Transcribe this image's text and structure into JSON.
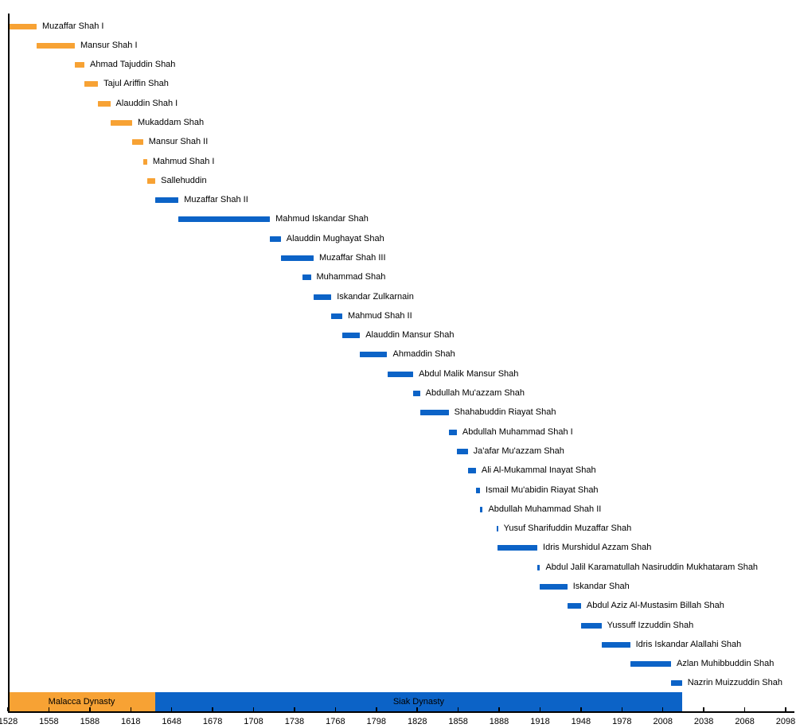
{
  "colors": {
    "malacca_orange": "#F7A234",
    "siak_blue": "#0C63C7",
    "axis_line": "#000000",
    "label_text": "#000000"
  },
  "chart_data": {
    "type": "timeline",
    "title": "",
    "xlabel": "",
    "ylabel": "",
    "grid": false,
    "legend_position": "none",
    "x_axis": {
      "min": 1528,
      "max": 2098,
      "tick_step": 30,
      "ticks": [
        1528,
        1558,
        1588,
        1618,
        1648,
        1678,
        1708,
        1738,
        1768,
        1798,
        1828,
        1858,
        1888,
        1918,
        1948,
        1978,
        2008,
        2038,
        2068,
        2098
      ]
    },
    "dynasties": [
      {
        "label": "Malacca Dynasty",
        "start": 1528,
        "end": 1636,
        "color": "#F7A234"
      },
      {
        "label": "Siak Dynasty",
        "start": 1636,
        "end": 2022,
        "color": "#0C63C7"
      }
    ],
    "rulers": [
      {
        "name": "Muzaffar Shah I",
        "start": 1528,
        "end": 1549,
        "dynasty": "Malacca Dynasty"
      },
      {
        "name": "Mansur Shah I",
        "start": 1549,
        "end": 1577,
        "dynasty": "Malacca Dynasty"
      },
      {
        "name": "Ahmad Tajuddin Shah",
        "start": 1577,
        "end": 1584,
        "dynasty": "Malacca Dynasty"
      },
      {
        "name": "Tajul Ariffin Shah",
        "start": 1584,
        "end": 1594,
        "dynasty": "Malacca Dynasty"
      },
      {
        "name": "Alauddin Shah I",
        "start": 1594,
        "end": 1603,
        "dynasty": "Malacca Dynasty"
      },
      {
        "name": "Mukaddam Shah",
        "start": 1603,
        "end": 1619,
        "dynasty": "Malacca Dynasty"
      },
      {
        "name": "Mansur Shah II",
        "start": 1619,
        "end": 1627,
        "dynasty": "Malacca Dynasty"
      },
      {
        "name": "Mahmud Shah I",
        "start": 1627,
        "end": 1630,
        "dynasty": "Malacca Dynasty"
      },
      {
        "name": "Sallehuddin",
        "start": 1630,
        "end": 1636,
        "dynasty": "Malacca Dynasty"
      },
      {
        "name": "Muzaffar Shah II",
        "start": 1636,
        "end": 1653,
        "dynasty": "Siak Dynasty"
      },
      {
        "name": "Mahmud Iskandar Shah",
        "start": 1653,
        "end": 1720,
        "dynasty": "Siak Dynasty"
      },
      {
        "name": "Alauddin Mughayat Shah",
        "start": 1720,
        "end": 1728,
        "dynasty": "Siak Dynasty"
      },
      {
        "name": "Muzaffar Shah III",
        "start": 1728,
        "end": 1752,
        "dynasty": "Siak Dynasty"
      },
      {
        "name": "Muhammad Shah",
        "start": 1744,
        "end": 1750,
        "dynasty": "Siak Dynasty"
      },
      {
        "name": "Iskandar Zulkarnain",
        "start": 1752,
        "end": 1765,
        "dynasty": "Siak Dynasty"
      },
      {
        "name": "Mahmud Shah II",
        "start": 1765,
        "end": 1773,
        "dynasty": "Siak Dynasty"
      },
      {
        "name": "Alauddin Mansur Shah",
        "start": 1773,
        "end": 1786,
        "dynasty": "Siak Dynasty"
      },
      {
        "name": "Ahmaddin Shah",
        "start": 1786,
        "end": 1806,
        "dynasty": "Siak Dynasty"
      },
      {
        "name": "Abdul Malik Mansur Shah",
        "start": 1806,
        "end": 1825,
        "dynasty": "Siak Dynasty"
      },
      {
        "name": "Abdullah Mu'azzam Shah",
        "start": 1825,
        "end": 1830,
        "dynasty": "Siak Dynasty"
      },
      {
        "name": "Shahabuddin Riayat Shah",
        "start": 1830,
        "end": 1851,
        "dynasty": "Siak Dynasty"
      },
      {
        "name": "Abdullah Muhammad Shah I",
        "start": 1851,
        "end": 1857,
        "dynasty": "Siak Dynasty"
      },
      {
        "name": "Ja'afar Mu'azzam Shah",
        "start": 1857,
        "end": 1865,
        "dynasty": "Siak Dynasty"
      },
      {
        "name": "Ali Al-Mukammal Inayat Shah",
        "start": 1865,
        "end": 1871,
        "dynasty": "Siak Dynasty"
      },
      {
        "name": "Ismail Mu'abidin Riayat Shah",
        "start": 1871,
        "end": 1874,
        "dynasty": "Siak Dynasty"
      },
      {
        "name": "Abdullah Muhammad Shah II",
        "start": 1874,
        "end": 1876,
        "dynasty": "Siak Dynasty"
      },
      {
        "name": "Yusuf Sharifuddin Muzaffar Shah",
        "start": 1886,
        "end": 1887,
        "dynasty": "Siak Dynasty"
      },
      {
        "name": "Idris Murshidul Azzam Shah",
        "start": 1887,
        "end": 1916,
        "dynasty": "Siak Dynasty"
      },
      {
        "name": "Abdul Jalil Karamatullah Nasiruddin Mukhataram Shah",
        "start": 1916,
        "end": 1918,
        "dynasty": "Siak Dynasty"
      },
      {
        "name": "Iskandar Shah",
        "start": 1918,
        "end": 1938,
        "dynasty": "Siak Dynasty"
      },
      {
        "name": "Abdul Aziz Al-Mustasim Billah Shah",
        "start": 1938,
        "end": 1948,
        "dynasty": "Siak Dynasty"
      },
      {
        "name": "Yussuff Izzuddin Shah",
        "start": 1948,
        "end": 1963,
        "dynasty": "Siak Dynasty"
      },
      {
        "name": "Idris Iskandar Alallahi Shah",
        "start": 1963,
        "end": 1984,
        "dynasty": "Siak Dynasty"
      },
      {
        "name": "Azlan Muhibbuddin Shah",
        "start": 1984,
        "end": 2014,
        "dynasty": "Siak Dynasty"
      },
      {
        "name": "Nazrin Muizzuddin Shah",
        "start": 2014,
        "end": 2022,
        "dynasty": "Siak Dynasty"
      }
    ]
  }
}
